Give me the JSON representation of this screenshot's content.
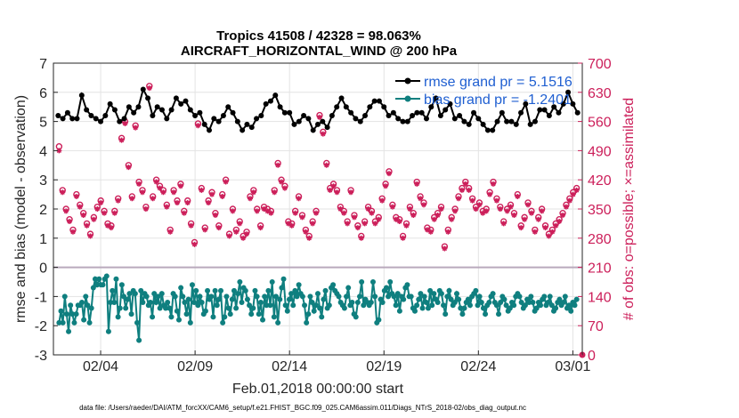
{
  "chart_data": {
    "type": "line",
    "title_line1": "Tropics 41508 / 42328 = 98.063%",
    "title_line2": "AIRCRAFT_HORIZONTAL_WIND @ 200 hPa",
    "xlabel": "Feb.01,2018 00:00:00 start",
    "ylabel_left": "rmse and bias (model - observation)",
    "ylabel_right": "# of obs: o=possible; ×=assimilated",
    "footnote": "data file: /Users/raeder/DAI/ATM_forcXX/CAM6_setup/f.e21.FHIST_BGC.f09_025.CAM6assim.011/Diags_NTrS_2018-02/obs_diag_output.nc",
    "xlim": [
      0,
      28
    ],
    "ylim_left": [
      -3,
      7
    ],
    "ylim_right": [
      0,
      700
    ],
    "yticks_left": [
      -3,
      -2,
      -1,
      0,
      1,
      2,
      3,
      4,
      5,
      6,
      7
    ],
    "yticks_right": [
      0,
      70,
      140,
      210,
      280,
      350,
      420,
      490,
      560,
      630,
      700
    ],
    "xticks": [
      {
        "value": 2.5,
        "label": "02/04"
      },
      {
        "value": 7.5,
        "label": "02/09"
      },
      {
        "value": 12.5,
        "label": "02/14"
      },
      {
        "value": 17.5,
        "label": "02/19"
      },
      {
        "value": 22.5,
        "label": "02/24"
      },
      {
        "value": 27.5,
        "label": "03/01"
      }
    ],
    "legend": [
      {
        "label": "rmse grand pr = 5.1516",
        "color": "#000000"
      },
      {
        "label": "bias grand pr = -1.2401",
        "color": "#0f7f7f"
      }
    ],
    "colors": {
      "rmse": "#000000",
      "bias": "#0f7f7f",
      "obs": "#cc1f5a",
      "zero_line": "#b9a9bc",
      "grid": "#e3e3e3"
    },
    "time_step_days": 0.25,
    "rmse": [
      5.2,
      5.1,
      5.3,
      5.1,
      5.1,
      5.9,
      5.4,
      5.2,
      5.1,
      5.0,
      5.2,
      5.6,
      5.4,
      5.0,
      5.1,
      5.5,
      5.3,
      5.5,
      6.1,
      5.8,
      5.2,
      5.5,
      5.4,
      5.1,
      5.4,
      5.8,
      5.6,
      5.7,
      5.4,
      5.2,
      5.3,
      4.9,
      4.7,
      5.1,
      5.0,
      5.2,
      5.5,
      5.3,
      5.0,
      4.7,
      4.9,
      4.8,
      5.1,
      5.2,
      5.6,
      5.7,
      5.9,
      5.5,
      5.3,
      5.3,
      4.9,
      5.0,
      5.2,
      5.1,
      4.7,
      4.9,
      5.0,
      4.8,
      5.2,
      5.5,
      5.8,
      5.5,
      5.3,
      5.1,
      5.0,
      5.2,
      5.5,
      5.7,
      5.7,
      5.5,
      5.2,
      5.3,
      5.1,
      5.0,
      5.0,
      5.2,
      5.3,
      5.3,
      5.1,
      5.5,
      5.8,
      5.2,
      5.4,
      5.6,
      5.1,
      5.2,
      5.0,
      4.9,
      5.3,
      5.1,
      4.9,
      4.7,
      4.7,
      5.0,
      5.3,
      5.0,
      5.0,
      4.9,
      5.3,
      5.6,
      4.9,
      5.0,
      5.4,
      5.4,
      5.2,
      5.5,
      5.3,
      5.6,
      6.0,
      5.6,
      5.3,
      5.1,
      5.2,
      5.0,
      5.3,
      5.4,
      5.1,
      4.7,
      4.8,
      5.0,
      4.6,
      4.9,
      5.0,
      5.2,
      5.0,
      5.2,
      5.5,
      5.4,
      5.2,
      5.0,
      5.1,
      5.3,
      5.0,
      5.2,
      5.3,
      4.9,
      4.8,
      4.6,
      4.9,
      5.0,
      5.0,
      5.2,
      5.5,
      5.3,
      4.9,
      5.0,
      4.8,
      4.7,
      5.0,
      5.2,
      5.3,
      5.0,
      5.1,
      4.9,
      4.8,
      5.2,
      5.5,
      5.3,
      5.1,
      5.2,
      5.0,
      5.3,
      5.0,
      5.1,
      5.3,
      5.9,
      5.6,
      5.2,
      5.4,
      5.1,
      5.2,
      5.5,
      5.1,
      5.3,
      5.0,
      5.1,
      5.3,
      5.4,
      5.5,
      5.5,
      5.2,
      5.0,
      4.8,
      4.9,
      5.2,
      5.5,
      5.6,
      5.2,
      5.1,
      5.0,
      5.9,
      5.2,
      5.5,
      4.9,
      5.3,
      5.3,
      5.0,
      5.3,
      5.1,
      5.5,
      5.6,
      5.0,
      4.9,
      5.1,
      5.0,
      4.9,
      5.4,
      5.2,
      5.2,
      5.0,
      4.9,
      5.3,
      5.0,
      5.4,
      5.3,
      5.0,
      5.6,
      5.5,
      5.5,
      5.0,
      5.1,
      4.9,
      5.5,
      5.7,
      5.8,
      5.5,
      5.3,
      5.1,
      5.4,
      5.6,
      5.5,
      5.7,
      5.5,
      5.3,
      5.1,
      5.2,
      5.4,
      5.6,
      5.3,
      5.1,
      5.6,
      5.0,
      5.4,
      5.0,
      5.0,
      5.2,
      5.6,
      5.4,
      5.5,
      5.9,
      5.3,
      5.0,
      4.9,
      5.1,
      5.6,
      5.3,
      5.0,
      4.8,
      4.6,
      4.9,
      5.2,
      5.1,
      4.9,
      5.0,
      5.2,
      5.0,
      4.8,
      5.3,
      5.8,
      5.4,
      5.3,
      5.5,
      5.3,
      5.1,
      5.0,
      5.2,
      4.9,
      4.8,
      5.0,
      5.3,
      5.2,
      5.5,
      5.9,
      5.4,
      5.2,
      5.1,
      5.4,
      5.5,
      5.0,
      5.4,
      5.9,
      5.2,
      5.1,
      5.5,
      4.9,
      4.8,
      5.2,
      5.5,
      5.2,
      5.6,
      5.3,
      5.3,
      5.0,
      5.2,
      5.0,
      4.9,
      5.1,
      5.3,
      5.5,
      5.8,
      5.3,
      5.3,
      5.0,
      5.2,
      5.0,
      5.4,
      5.1,
      5.3,
      5.2,
      5.0,
      5.1,
      5.0,
      4.9,
      4.9,
      5.1,
      5.0,
      5.3,
      5.6,
      5.8,
      5.7,
      5.4,
      5.2,
      5.3,
      4.9,
      5.1,
      5.3,
      5.5,
      5.4,
      5.0,
      5.2,
      5.1,
      5.2,
      5.1,
      4.9,
      5.0,
      5.0,
      5.3,
      5.7,
      5.0,
      4.8,
      5.0,
      5.1,
      5.5,
      5.3,
      5.7,
      5.6,
      5.2,
      5.1,
      5.0,
      5.0,
      4.9,
      4.7,
      4.8,
      4.6,
      4.9,
      5.2,
      5.3,
      5.1,
      5.1,
      5.4,
      5.6,
      5.8,
      6.0,
      5.7,
      5.2,
      5.2,
      5.0,
      5.0,
      5.1,
      5.1,
      4.9,
      5.2,
      5.5,
      5.8,
      5.9,
      5.4,
      5.1,
      5.0,
      5.2,
      5.4,
      5.3,
      5.1,
      5.4,
      5.5,
      5.6,
      5.2,
      5.4,
      5.0,
      4.9,
      4.9,
      5.2,
      5.1,
      5.3,
      5.3,
      5.3,
      5.1,
      4.8,
      5.4,
      5.1,
      5.0,
      5.2,
      4.9,
      5.3,
      5.0,
      5.2,
      5.4,
      5.1,
      5.3,
      5.2,
      4.9,
      5.1,
      5.5,
      5.6,
      5.2,
      5.0,
      5.2,
      5.3,
      5.1,
      5.0,
      5.1,
      5.5,
      5.3,
      5.5,
      5.7,
      5.4,
      5.2,
      5.3,
      5.1,
      4.9,
      5.0,
      5.0,
      5.1,
      5.2,
      5.5,
      5.0,
      5.1,
      5.0,
      5.2,
      5.3,
      5.4,
      5.3,
      5.2,
      5.1,
      5.1,
      5.5,
      5.3,
      5.0,
      5.0,
      5.2,
      5.4,
      5.3,
      5.1,
      4.9,
      4.8,
      4.8,
      5.0,
      5.2,
      5.1,
      5.0,
      5.4,
      5.3,
      5.5,
      5.6,
      5.3,
      5.0,
      5.4,
      5.0,
      4.9,
      5.4,
      5.9,
      5.3,
      5.1,
      5.1,
      5.0,
      5.2,
      5.6,
      5.4,
      5.1,
      4.9,
      5.3,
      5.0,
      4.9,
      5.2,
      5.0,
      5.1,
      5.3,
      5.1,
      4.9,
      4.9,
      5.3,
      5.4,
      5.0,
      5.0,
      4.9,
      5.2,
      4.8,
      5.1,
      5.2,
      5.6,
      5.5,
      5.1,
      5.2,
      5.5,
      5.2,
      5.1,
      5.0,
      4.9,
      5.2,
      5.0,
      5.3,
      5.1,
      4.9,
      5.0,
      5.4,
      5.5,
      5.1,
      5.0,
      5.1,
      5.0,
      4.9,
      5.2,
      5.3,
      5.1,
      5.1,
      5.4,
      5.2,
      5.3,
      5.0,
      5.2,
      5.1,
      5.0,
      5.2,
      5.1,
      5.4,
      5.6,
      5.0,
      5.0,
      5.2,
      5.5,
      5.2,
      5.1,
      5.0,
      5.0,
      4.8,
      5.3,
      5.0,
      4.9,
      5.1,
      5.2,
      5.3,
      5.0,
      5.3,
      5.5,
      5.4,
      5.2,
      5.0,
      5.3,
      5.1,
      5.0,
      5.0,
      4.9,
      5.2,
      5.4,
      5.3,
      5.1,
      5.0,
      5.2,
      5.3,
      4.9,
      5.0,
      5.1,
      5.0,
      5.2,
      5.3,
      5.4,
      5.2,
      5.0,
      5.0,
      5.1
    ],
    "bias": [
      -1.9,
      -1.5,
      -1.9,
      -1.0,
      -1.6,
      -2.2,
      -1.3,
      -1.6,
      -1.9,
      -1.6,
      -1.3,
      -1.3,
      -1.2,
      -1.8,
      -1.0,
      -1.3,
      -1.9,
      -1.4,
      -0.7,
      -0.4,
      -0.6,
      -0.4,
      -0.6,
      -0.6,
      -0.4,
      -0.3,
      -2.2,
      -1.2,
      -0.8,
      -1.2,
      -0.4,
      -1.7,
      -1.4,
      -0.6,
      -1.0,
      -1.4,
      -1.1,
      -0.9,
      -1.6,
      -0.8,
      -0.9,
      -1.9,
      -2.5,
      -0.8,
      -1.2,
      -0.9,
      -1.0,
      -1.3,
      -1.2,
      -1.7,
      -0.9,
      -1.2,
      -1.0,
      -1.4,
      -0.9,
      -1.3,
      -1.4,
      -1.2,
      -1.4,
      -1.7,
      -0.9,
      -1.0,
      -1.5,
      -1.8,
      -0.7,
      -1.0,
      -1.2,
      -1.6,
      -1.1,
      -1.9,
      -0.6,
      -1.2,
      -0.8,
      -1.3,
      -1.0,
      -1.2,
      -1.6,
      -1.5,
      -0.8,
      -1.1,
      -1.0,
      -1.7,
      -0.8,
      -1.3,
      -1.1,
      -0.8,
      -1.9,
      -1.7,
      -1.0,
      -1.4,
      -1.6,
      -1.1,
      -0.8,
      -1.4,
      -0.9,
      -0.5,
      -1.2,
      -0.7,
      -0.8,
      -1.1,
      -1.3,
      -1.6,
      -1.4,
      -0.8,
      -1.0,
      -1.6,
      -1.2,
      -1.8,
      -1.0,
      -1.3,
      -0.8,
      -1.3,
      -0.5,
      -1.7,
      -1.0,
      -1.9,
      -1.1,
      -0.7,
      -0.4,
      -1.3,
      -1.5,
      -1.1,
      -0.9,
      -1.3,
      -0.8,
      -1.0,
      -0.6,
      -0.9,
      -1.0,
      -1.3,
      -1.9,
      -1.6,
      -1.0,
      -1.2,
      -1.5,
      -1.3,
      -0.9,
      -1.4,
      -1.7,
      -1.1,
      -0.8,
      -1.4,
      -1.3,
      -0.7,
      -0.6,
      -0.8,
      -0.9,
      -1.0,
      -1.2,
      -1.3,
      -1.4,
      -1.0,
      -0.7,
      -1.3,
      -1.2,
      -1.6,
      -1.7,
      -1.2,
      -1.0,
      -0.5,
      -1.3,
      -1.1,
      -1.2,
      -1.3,
      -1.2,
      -0.5,
      -1.0,
      -1.9,
      -1.8,
      -1.1,
      -1.2,
      -0.8,
      -0.7,
      -1.0,
      -0.5,
      -0.9,
      -1.0,
      -1.3,
      -0.9,
      -1.5,
      -1.0,
      -1.1,
      -0.7,
      -0.6,
      -1.0,
      -1.0,
      -1.4,
      -1.5,
      -1.3,
      -1.1,
      -0.9,
      -1.4,
      -1.0,
      -1.2,
      -1.4,
      -0.8,
      -1.3,
      -0.9,
      -1.1,
      -1.2,
      -0.8,
      -0.9,
      -1.3,
      -1.6,
      -1.0,
      -0.8,
      -1.1,
      -1.3,
      -1.2,
      -0.9,
      -1.1,
      -1.4,
      -1.6,
      -1.4,
      -1.2,
      -1.1,
      -1.3,
      -1.0,
      -0.9,
      -0.8,
      -1.3,
      -1.0,
      -1.2,
      -1.4,
      -1.6,
      -1.3,
      -1.2,
      -1.0,
      -0.9,
      -1.2,
      -1.3,
      -1.6,
      -1.2,
      -1.0,
      -1.1,
      -1.3,
      -1.5,
      -1.4,
      -1.2,
      -1.3,
      -1.0,
      -0.9,
      -1.0,
      -1.2,
      -1.4,
      -1.3,
      -1.1,
      -1.2,
      -1.0,
      -1.2,
      -1.5,
      -1.4,
      -1.2,
      -1.3,
      -1.1,
      -1.0,
      -1.3,
      -1.2,
      -1.0,
      -1.3,
      -1.5,
      -1.4,
      -1.2,
      -1.1,
      -1.3,
      -1.2,
      -1.0,
      -1.4,
      -1.3,
      -1.5,
      -1.2,
      -1.3,
      -1.1
    ],
    "obs_possible": [
      500,
      395,
      350,
      325,
      300,
      385,
      360,
      340,
      315,
      290,
      330,
      355,
      370,
      345,
      315,
      310,
      345,
      375,
      520,
      560,
      455,
      380,
      550,
      415,
      395,
      355,
      645,
      380,
      420,
      405,
      395,
      360,
      300,
      395,
      370,
      410,
      345,
      370,
      315,
      270,
      555,
      400,
      305,
      370,
      390,
      340,
      310,
      385,
      420,
      290,
      350,
      300,
      320,
      285,
      295,
      380,
      395,
      350,
      310,
      355,
      350,
      345,
      395,
      460,
      420,
      405,
      320,
      315,
      345,
      380,
      335,
      300,
      285,
      320,
      345,
      575,
      535,
      460,
      400,
      410,
      395,
      355,
      345,
      320,
      395,
      335,
      310,
      285,
      320,
      355,
      345,
      320,
      330,
      375,
      410,
      440,
      360,
      330,
      325,
      285,
      315,
      355,
      340,
      415,
      380,
      365,
      305,
      300,
      330,
      340,
      355,
      260,
      300,
      330,
      350,
      380,
      400,
      415,
      400,
      375,
      355,
      365,
      345,
      350,
      390,
      415,
      375,
      355,
      320,
      350,
      360,
      340,
      385,
      310,
      330,
      365,
      345,
      300,
      330,
      350,
      310,
      290,
      300,
      315,
      325,
      340,
      360,
      375,
      390,
      400
    ],
    "obs_assimilated": [
      490,
      390,
      345,
      320,
      295,
      380,
      355,
      335,
      310,
      285,
      325,
      350,
      365,
      340,
      310,
      305,
      340,
      370,
      515,
      555,
      450,
      375,
      545,
      410,
      390,
      350,
      640,
      375,
      415,
      400,
      390,
      355,
      295,
      390,
      365,
      405,
      340,
      365,
      310,
      265,
      550,
      395,
      300,
      365,
      385,
      335,
      305,
      380,
      415,
      285,
      345,
      295,
      315,
      280,
      290,
      375,
      390,
      345,
      305,
      350,
      345,
      340,
      390,
      455,
      415,
      400,
      315,
      310,
      340,
      375,
      330,
      295,
      280,
      315,
      340,
      570,
      530,
      455,
      395,
      405,
      390,
      350,
      340,
      315,
      390,
      330,
      305,
      280,
      315,
      350,
      340,
      315,
      325,
      370,
      405,
      435,
      355,
      325,
      320,
      280,
      310,
      350,
      335,
      410,
      375,
      360,
      300,
      295,
      325,
      335,
      350,
      255,
      295,
      325,
      345,
      375,
      395,
      410,
      395,
      370,
      350,
      360,
      340,
      345,
      385,
      410,
      370,
      350,
      315,
      345,
      355,
      335,
      380,
      305,
      325,
      360,
      340,
      295,
      325,
      345,
      305,
      285,
      295,
      310,
      320,
      335,
      355,
      370,
      385,
      395
    ]
  }
}
